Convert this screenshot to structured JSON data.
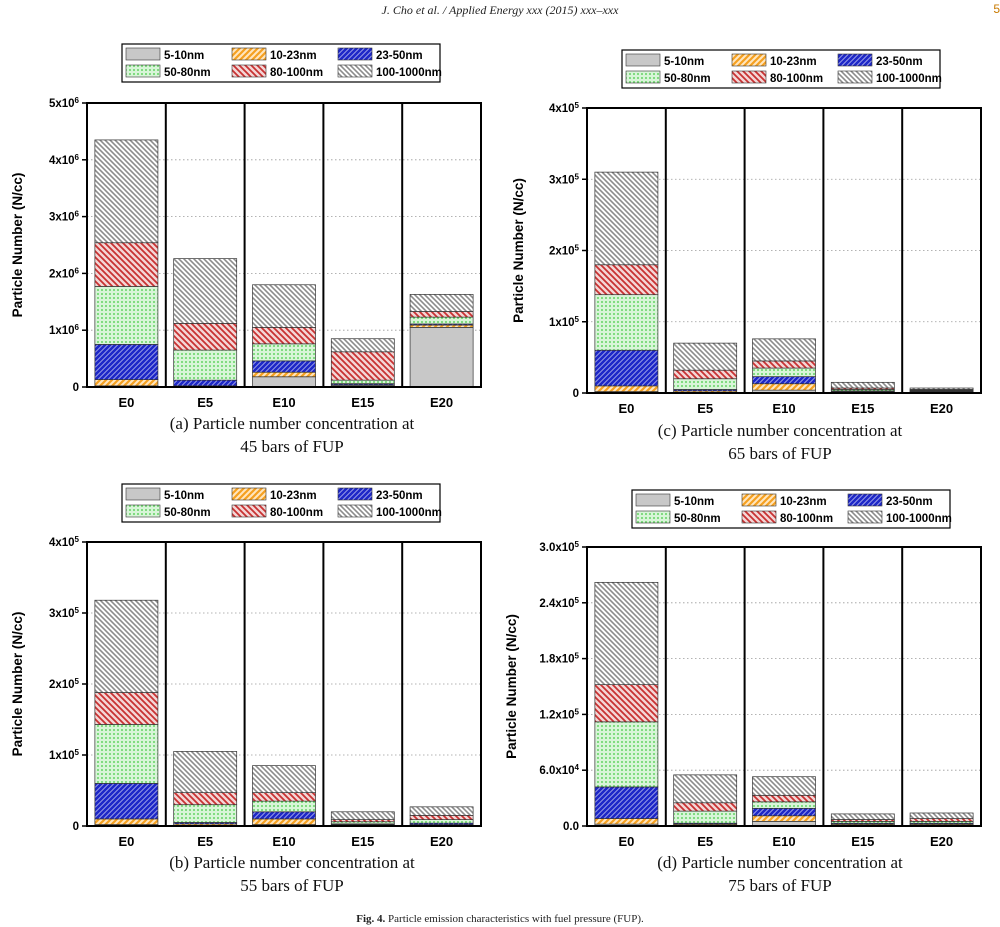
{
  "header": {
    "running_title": "J. Cho et al. / Applied Energy xxx (2015) xxx–xxx",
    "page_mark": "5"
  },
  "caption": {
    "label": "Fig. 4.",
    "text": "Particle emission characteristics with fuel pressure (FUP)."
  },
  "colors": {
    "5-10nm": "#c8c8c8",
    "10-23nm": "#f5a020",
    "23-50nm": "#1e28c8",
    "50-80nm": "#3cc83c",
    "80-100nm": "#c83232",
    "100-1000nm": "#8c8c8c"
  },
  "chart_data": [
    {
      "type": "bar",
      "stacked": true,
      "id": "a",
      "caption_line1": "(a) Particle number concentration at",
      "caption_line2": "45 bars of FUP",
      "ylabel": "Particle Number (N/cc)",
      "categories": [
        "E0",
        "E5",
        "E10",
        "E15",
        "E20"
      ],
      "ylim": [
        0,
        5000000
      ],
      "yticks": [
        0,
        1000000,
        2000000,
        3000000,
        4000000,
        5000000
      ],
      "ytick_labels": [
        {
          "base": "0",
          "exp": ""
        },
        {
          "base": "1x10",
          "exp": "6"
        },
        {
          "base": "2x10",
          "exp": "6"
        },
        {
          "base": "3x10",
          "exp": "6"
        },
        {
          "base": "4x10",
          "exp": "6"
        },
        {
          "base": "5x10",
          "exp": "6"
        }
      ],
      "legend": [
        "5-10nm",
        "10-23nm",
        "23-50nm",
        "50-80nm",
        "80-100nm",
        "100-1000nm"
      ],
      "series": [
        {
          "name": "5-10nm",
          "values": [
            20000,
            10000,
            180000,
            30000,
            1050000
          ]
        },
        {
          "name": "10-23nm",
          "values": [
            110000,
            10000,
            80000,
            10000,
            40000
          ]
        },
        {
          "name": "23-50nm",
          "values": [
            620000,
            100000,
            200000,
            20000,
            20000
          ]
        },
        {
          "name": "50-80nm",
          "values": [
            1020000,
            530000,
            300000,
            60000,
            120000
          ]
        },
        {
          "name": "80-100nm",
          "values": [
            770000,
            470000,
            290000,
            500000,
            100000
          ]
        },
        {
          "name": "100-1000nm",
          "values": [
            1810000,
            1140000,
            750000,
            230000,
            300000
          ]
        }
      ]
    },
    {
      "type": "bar",
      "stacked": true,
      "id": "b",
      "caption_line1": "(b) Particle number concentration at",
      "caption_line2": "55 bars of FUP",
      "ylabel": "Particle Number (N/cc)",
      "categories": [
        "E0",
        "E5",
        "E10",
        "E15",
        "E20"
      ],
      "ylim": [
        0,
        400000
      ],
      "yticks": [
        0,
        100000,
        200000,
        300000,
        400000
      ],
      "ytick_labels": [
        {
          "base": "0",
          "exp": ""
        },
        {
          "base": "1x10",
          "exp": "5"
        },
        {
          "base": "2x10",
          "exp": "5"
        },
        {
          "base": "3x10",
          "exp": "5"
        },
        {
          "base": "4x10",
          "exp": "5"
        }
      ],
      "legend": [
        "5-10nm",
        "10-23nm",
        "23-50nm",
        "50-80nm",
        "80-100nm",
        "100-1000nm"
      ],
      "series": [
        {
          "name": "5-10nm",
          "values": [
            2000,
            1000,
            2000,
            1000,
            1000
          ]
        },
        {
          "name": "10-23nm",
          "values": [
            8000,
            2000,
            8000,
            1000,
            1000
          ]
        },
        {
          "name": "23-50nm",
          "values": [
            50000,
            2000,
            10000,
            1000,
            2000
          ]
        },
        {
          "name": "50-80nm",
          "values": [
            83000,
            25000,
            15000,
            3000,
            5000
          ]
        },
        {
          "name": "80-100nm",
          "values": [
            45000,
            17000,
            12000,
            3000,
            6000
          ]
        },
        {
          "name": "100-1000nm",
          "values": [
            130000,
            58000,
            38000,
            11000,
            12000
          ]
        }
      ]
    },
    {
      "type": "bar",
      "stacked": true,
      "id": "c",
      "caption_line1": "(c) Particle number concentration at",
      "caption_line2": "65 bars of FUP",
      "ylabel": "Particle Number (N/cc)",
      "categories": [
        "E0",
        "E5",
        "E10",
        "E15",
        "E20"
      ],
      "ylim": [
        0,
        400000
      ],
      "yticks": [
        0,
        100000,
        200000,
        300000,
        400000
      ],
      "ytick_labels": [
        {
          "base": "0",
          "exp": ""
        },
        {
          "base": "1x10",
          "exp": "5"
        },
        {
          "base": "2x10",
          "exp": "5"
        },
        {
          "base": "3x10",
          "exp": "5"
        },
        {
          "base": "4x10",
          "exp": "5"
        }
      ],
      "legend": [
        "5-10nm",
        "10-23nm",
        "23-50nm",
        "50-80nm",
        "80-100nm",
        "100-1000nm"
      ],
      "series": [
        {
          "name": "5-10nm",
          "values": [
            2000,
            1000,
            4000,
            1000,
            1000
          ]
        },
        {
          "name": "10-23nm",
          "values": [
            8000,
            2000,
            9000,
            1000,
            1000
          ]
        },
        {
          "name": "23-50nm",
          "values": [
            50000,
            2000,
            10000,
            1000,
            1000
          ]
        },
        {
          "name": "50-80nm",
          "values": [
            78000,
            15000,
            12000,
            2000,
            1000
          ]
        },
        {
          "name": "80-100nm",
          "values": [
            42000,
            12000,
            10000,
            2000,
            1000
          ]
        },
        {
          "name": "100-1000nm",
          "values": [
            130000,
            38000,
            31000,
            8000,
            2000
          ]
        }
      ]
    },
    {
      "type": "bar",
      "stacked": true,
      "id": "d",
      "caption_line1": "(d) Particle number concentration at",
      "caption_line2": "75 bars of FUP",
      "ylabel": "Particle Number (N/cc)",
      "categories": [
        "E0",
        "E5",
        "E10",
        "E15",
        "E20"
      ],
      "ylim": [
        0,
        300000
      ],
      "yticks": [
        0,
        60000,
        120000,
        180000,
        240000,
        300000
      ],
      "ytick_labels": [
        {
          "base": "0.0",
          "exp": ""
        },
        {
          "base": "6.0x10",
          "exp": "4"
        },
        {
          "base": "1.2x10",
          "exp": "5"
        },
        {
          "base": "1.8x10",
          "exp": "5"
        },
        {
          "base": "2.4x10",
          "exp": "5"
        },
        {
          "base": "3.0x10",
          "exp": "5"
        }
      ],
      "legend": [
        "5-10nm",
        "10-23nm",
        "23-50nm",
        "50-80nm",
        "80-100nm",
        "100-1000nm"
      ],
      "series": [
        {
          "name": "5-10nm",
          "values": [
            2000,
            1000,
            5000,
            1000,
            1000
          ]
        },
        {
          "name": "10-23nm",
          "values": [
            6000,
            1000,
            6000,
            1000,
            1000
          ]
        },
        {
          "name": "23-50nm",
          "values": [
            34000,
            1000,
            8000,
            1000,
            1000
          ]
        },
        {
          "name": "50-80nm",
          "values": [
            70000,
            13000,
            7000,
            2000,
            2000
          ]
        },
        {
          "name": "80-100nm",
          "values": [
            40000,
            9000,
            7000,
            2000,
            3000
          ]
        },
        {
          "name": "100-1000nm",
          "values": [
            110000,
            30000,
            20000,
            6000,
            6000
          ]
        }
      ]
    }
  ]
}
